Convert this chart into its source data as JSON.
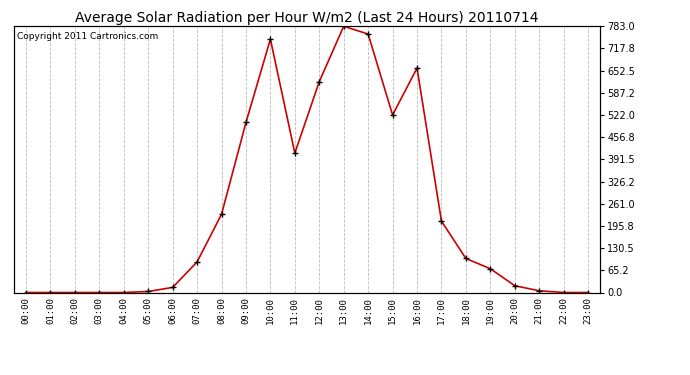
{
  "title": "Average Solar Radiation per Hour W/m2 (Last 24 Hours) 20110714",
  "copyright": "Copyright 2011 Cartronics.com",
  "x_labels": [
    "00:00",
    "01:00",
    "02:00",
    "03:00",
    "04:00",
    "05:00",
    "06:00",
    "07:00",
    "08:00",
    "09:00",
    "10:00",
    "11:00",
    "12:00",
    "13:00",
    "14:00",
    "15:00",
    "16:00",
    "17:00",
    "18:00",
    "19:00",
    "20:00",
    "21:00",
    "22:00",
    "23:00"
  ],
  "y_values": [
    0.0,
    0.0,
    0.0,
    0.0,
    0.0,
    3.0,
    15.0,
    90.0,
    230.0,
    500.0,
    745.0,
    410.0,
    620.0,
    783.0,
    760.0,
    522.0,
    660.0,
    210.0,
    100.0,
    70.0,
    20.0,
    5.0,
    0.0,
    0.0
  ],
  "y_ticks": [
    0.0,
    65.2,
    130.5,
    195.8,
    261.0,
    326.2,
    391.5,
    456.8,
    522.0,
    587.2,
    652.5,
    717.8,
    783.0
  ],
  "y_max": 783.0,
  "line_color": "#cc0000",
  "marker_color": "#000000",
  "bg_color": "#ffffff",
  "grid_color": "#aaaaaa",
  "title_fontsize": 10,
  "copyright_fontsize": 6.5
}
